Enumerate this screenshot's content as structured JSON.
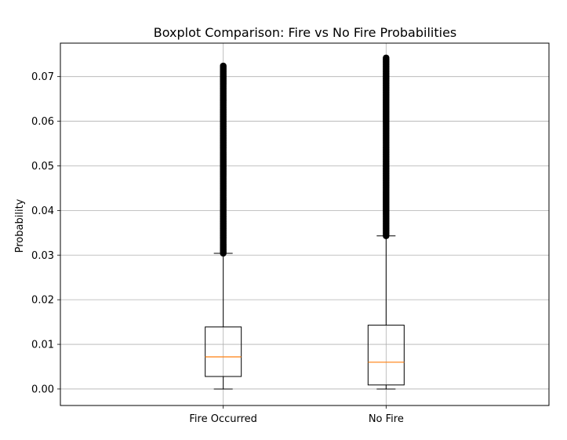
{
  "chart_data": {
    "type": "boxplot",
    "title": "Boxplot Comparison: Fire vs No Fire Probabilities",
    "xlabel": "",
    "ylabel": "Probability",
    "ylim": [
      -0.0037,
      0.0775
    ],
    "grid": true,
    "yticks": [
      0.0,
      0.01,
      0.02,
      0.03,
      0.04,
      0.05,
      0.06,
      0.07
    ],
    "ytick_labels": [
      "0.00",
      "0.01",
      "0.02",
      "0.03",
      "0.04",
      "0.05",
      "0.06",
      "0.07"
    ],
    "categories": [
      "Fire Occurred",
      "No Fire"
    ],
    "series": [
      {
        "name": "Fire Occurred",
        "whisker_low": 0.0,
        "q1": 0.0028,
        "median": 0.0072,
        "q3": 0.0139,
        "whisker_high": 0.0304,
        "outliers_range": [
          0.0304,
          0.0724
        ]
      },
      {
        "name": "No Fire",
        "whisker_low": 0.0,
        "q1": 0.0009,
        "median": 0.006,
        "q3": 0.0143,
        "whisker_high": 0.0343,
        "outliers_range": [
          0.0343,
          0.0742
        ]
      }
    ],
    "colors": {
      "box": "#000000",
      "median": "#ff7f0e",
      "grid": "#b0b0b0",
      "outlier": "#000000"
    }
  }
}
